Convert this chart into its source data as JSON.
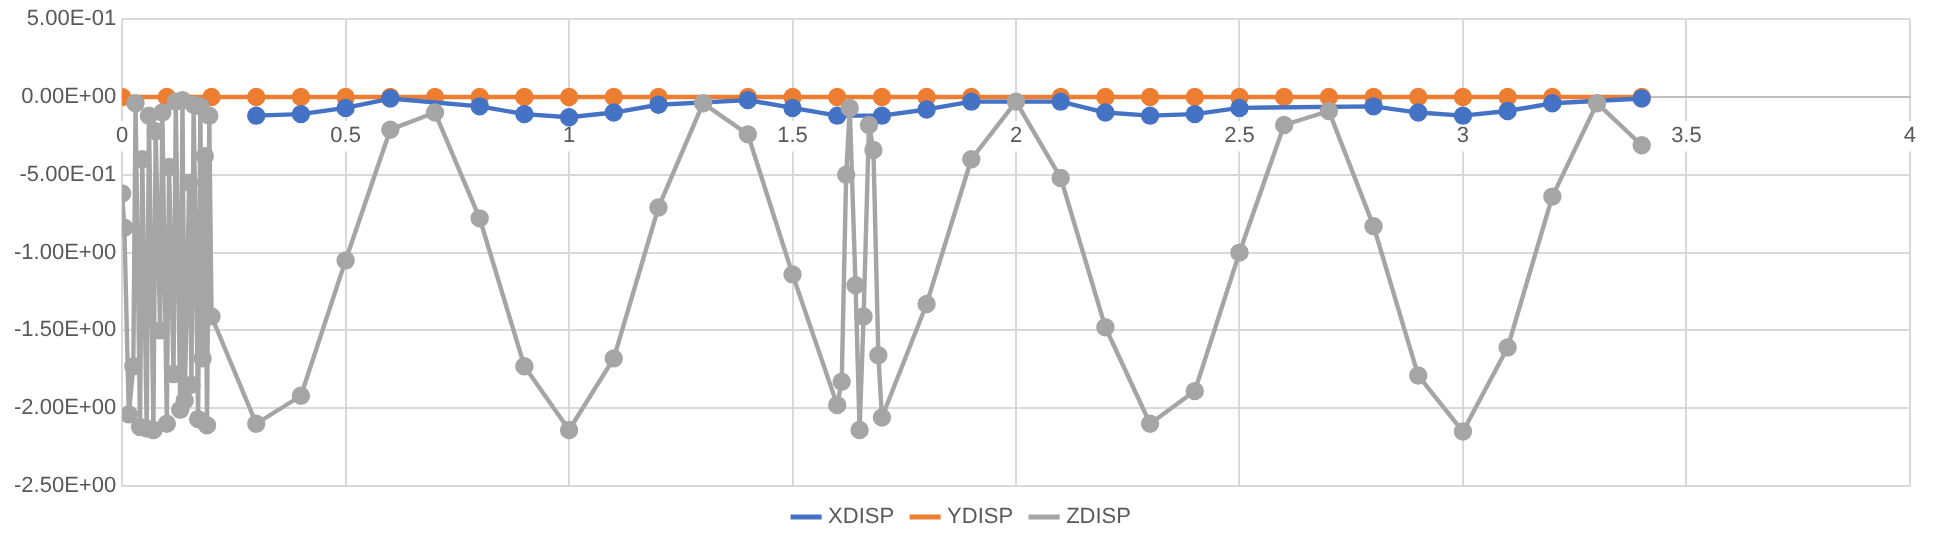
{
  "chart_data": {
    "type": "line",
    "line_style": "solid",
    "marker": "circle",
    "grid": true,
    "legend": "bottom",
    "xlim": [
      0,
      4
    ],
    "xticks": [
      0,
      0.5,
      1,
      1.5,
      2,
      2.5,
      3,
      3.5,
      4
    ],
    "ylim": [
      -2.5,
      0.5
    ],
    "yticks": [
      {
        "value": -2.5,
        "label": "-2.50E+00"
      },
      {
        "value": -2,
        "label": "-2.00E+00"
      },
      {
        "value": -1.5,
        "label": "-1.50E+00"
      },
      {
        "value": -1,
        "label": "-1.00E+00"
      },
      {
        "value": -0.5,
        "label": "-5.00E-01"
      },
      {
        "value": 0,
        "label": "0.00E+00"
      },
      {
        "value": 0.5,
        "label": "5.00E-01"
      }
    ],
    "x": [
      0,
      0.005,
      0.015,
      0.025,
      0.03,
      0.04,
      0.045,
      0.055,
      0.06,
      0.07,
      0.075,
      0.085,
      0.09,
      0.1,
      0.105,
      0.115,
      0.12,
      0.13,
      0.135,
      0.14,
      0.15,
      0.155,
      0.16,
      0.17,
      0.175,
      0.18,
      0.185,
      0.19,
      0.195,
      0.2,
      0.3,
      0.4,
      0.5,
      0.6,
      0.7,
      0.8,
      0.9,
      1.0,
      1.1,
      1.2,
      1.3,
      1.4,
      1.5,
      1.6,
      1.61,
      1.62,
      1.628,
      1.641,
      1.65,
      1.659,
      1.671,
      1.681,
      1.692,
      1.7,
      1.8,
      1.9,
      2.0,
      2.1,
      2.2,
      2.3,
      2.4,
      2.5,
      2.6,
      2.7,
      2.8,
      2.9,
      3.0,
      3.1,
      3.2,
      3.3,
      3.4
    ],
    "series": [
      {
        "name": "XDISP",
        "color": "#4472c4",
        "x": [
          0.3,
          0.4,
          0.5,
          0.6,
          0.8,
          0.9,
          1.0,
          1.1,
          1.2,
          1.4,
          1.5,
          1.6,
          1.7,
          1.8,
          1.9,
          2.1,
          2.2,
          2.3,
          2.4,
          2.5,
          2.8,
          2.9,
          3.0,
          3.1,
          3.2,
          3.4
        ],
        "values": [
          -0.12,
          -0.11,
          -0.07,
          -0.01,
          -0.06,
          -0.11,
          -0.13,
          -0.1,
          -0.05,
          -0.02,
          -0.07,
          -0.12,
          -0.12,
          -0.08,
          -0.03,
          -0.03,
          -0.1,
          -0.12,
          -0.11,
          -0.07,
          -0.06,
          -0.1,
          -0.12,
          -0.09,
          -0.04,
          -0.01
        ]
      },
      {
        "name": "YDISP",
        "color": "#ed7d31",
        "x": [
          0,
          0.1,
          0.2,
          0.3,
          0.4,
          0.5,
          0.6,
          0.7,
          0.8,
          0.9,
          1.0,
          1.1,
          1.2,
          1.4,
          1.5,
          1.6,
          1.7,
          1.8,
          1.9,
          2.1,
          2.2,
          2.3,
          2.4,
          2.5,
          2.6,
          2.7,
          2.8,
          2.9,
          3.0,
          3.1,
          3.2,
          3.4
        ],
        "values": [
          0,
          0,
          0,
          0,
          0,
          0,
          0,
          0,
          0,
          0,
          0,
          0,
          0,
          0,
          0,
          0,
          0,
          0,
          0,
          0,
          0,
          0,
          0,
          0,
          0,
          0,
          0,
          0,
          0,
          0,
          0,
          0
        ]
      },
      {
        "name": "ZDISP",
        "color": "#a5a5a5",
        "values": [
          -0.62,
          -0.84,
          -2.04,
          -1.73,
          -0.04,
          -2.12,
          -0.4,
          -2.13,
          -0.12,
          -2.14,
          -0.22,
          -1.5,
          -0.1,
          -2.1,
          -0.45,
          -1.78,
          -0.03,
          -2.01,
          -0.02,
          -1.95,
          -0.55,
          -1.85,
          -0.05,
          -2.07,
          -0.06,
          -1.68,
          -0.38,
          -2.11,
          -0.12,
          -1.41,
          -2.1,
          -1.92,
          -1.05,
          -0.21,
          -0.1,
          -0.78,
          -1.73,
          -2.14,
          -1.68,
          -0.71,
          -0.04,
          -0.24,
          -1.14,
          -1.98,
          -1.83,
          -0.5,
          -0.07,
          -1.21,
          -2.14,
          -1.41,
          -0.18,
          -0.34,
          -1.66,
          -2.06,
          -1.33,
          -0.4,
          -0.03,
          -0.52,
          -1.48,
          -2.1,
          -1.89,
          -1,
          -0.18,
          -0.09,
          -0.83,
          -1.79,
          -2.15,
          -1.61,
          -0.64,
          -0.04,
          -0.31
        ]
      }
    ]
  }
}
